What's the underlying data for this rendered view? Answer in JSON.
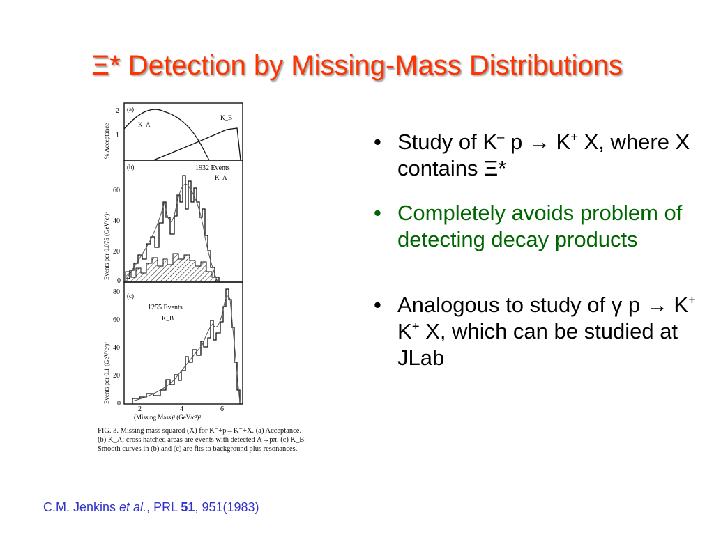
{
  "title": "Ξ* Detection by Missing-Mass Distributions",
  "bullets": [
    {
      "pre": "Study of K",
      "sup1": "–",
      "mid": " p → K",
      "sup2": "+",
      "post": " X, where X contains Ξ*"
    },
    {
      "text": "Completely avoids problem of detecting decay products"
    },
    {
      "pre": "Analogous to study of γ p → K",
      "sup1": "+",
      "mid": " K",
      "sup2": "+",
      "post": " X, which can be studied at JLab"
    }
  ],
  "figure": {
    "panel_a": {
      "label": "(a)",
      "ylabel": "% Acceptance",
      "yticks": [
        "2",
        "1"
      ],
      "curve1": "K_A",
      "curve2": "K_B"
    },
    "panel_b": {
      "label": "(b)",
      "ylabel": "Events per 0.075 (GeV/c²)²",
      "annotation": "1932 Events",
      "curve": "K_A",
      "yticks": [
        "60",
        "40",
        "20",
        "0"
      ]
    },
    "panel_c": {
      "label": "(c)",
      "ylabel": "Events per 0.1 (GeV/c²)²",
      "annotation": "1255 Events",
      "curve": "K_B",
      "yticks": [
        "80",
        "60",
        "40",
        "20",
        "0"
      ]
    },
    "xticks": [
      "2",
      "4",
      "6"
    ],
    "xlabel": "(Missing Mass)² (GeV/c²)²",
    "caption": "FIG. 3. Missing mass squared (X) for K⁻+p→K⁺+X. (a) Acceptance. (b) K_A; cross hatched areas are events with detected Λ→pπ. (c) K_B. Smooth curves in (b) and (c) are fits to background plus resonances."
  },
  "citation": {
    "authors": "C.M. Jenkins ",
    "etal": "et al.",
    "journal": ", PRL ",
    "volume": "51",
    "rest": ", 951(1983)"
  }
}
